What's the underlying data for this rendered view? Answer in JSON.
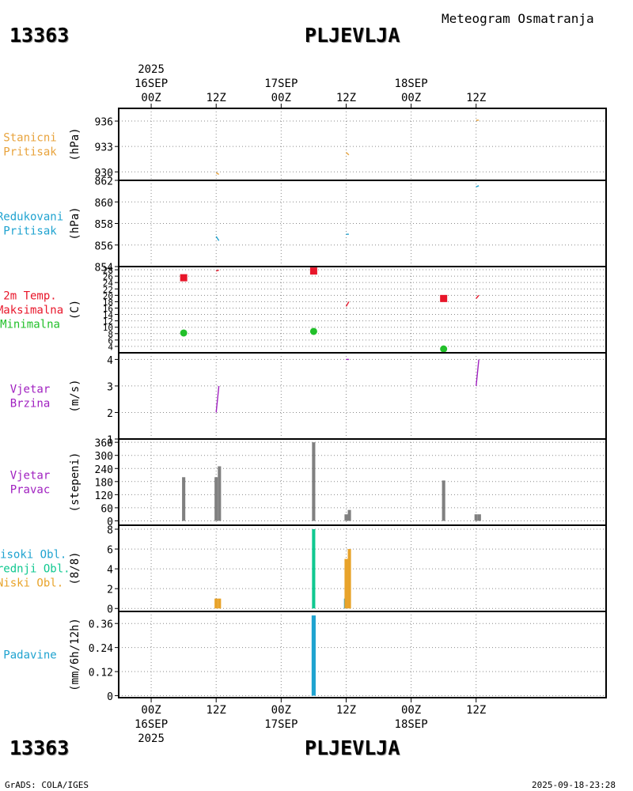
{
  "header": {
    "station_id": "13363",
    "station_name": "PLJEVLJA",
    "title": "Meteogram Osmatranja"
  },
  "footer": {
    "station_id": "13363",
    "station_name": "PLJEVLJA",
    "credit": "GrADS: COLA/IGES",
    "generated": "2025-09-18-23:28"
  },
  "colors": {
    "pressure": "#e8a33c",
    "reduced": "#1fa3d0",
    "tmax": "#e8162a",
    "tmin": "#22c02a",
    "wind": "#a020c0",
    "bar": "#808080",
    "high_cloud": "#1fa3d0",
    "mid_cloud": "#10c890",
    "low_cloud": "#e8a32a",
    "precip": "#1fa3d0"
  },
  "chart_data": {
    "type": "meteogram",
    "time_axis": {
      "hours_range": [
        -6,
        84
      ],
      "top_year_label": "2025",
      "bottom_year_label": "2025",
      "ticks": [
        {
          "hour": 0,
          "time": "00Z",
          "date": "16SEP"
        },
        {
          "hour": 12,
          "time": "12Z",
          "date": ""
        },
        {
          "hour": 24,
          "time": "00Z",
          "date": "17SEP"
        },
        {
          "hour": 36,
          "time": "12Z",
          "date": ""
        },
        {
          "hour": 48,
          "time": "00Z",
          "date": "18SEP"
        },
        {
          "hour": 60,
          "time": "12Z",
          "date": ""
        }
      ]
    },
    "panels": [
      {
        "id": "station_pressure",
        "labels": [
          {
            "text": "Stanicni",
            "color": "#e8a33c"
          },
          {
            "text": "Pritisak",
            "color": "#e8a33c"
          }
        ],
        "unit": "(hPa)",
        "ylim": [
          929,
          937.5
        ],
        "ticks": [
          930,
          933,
          936
        ],
        "series": [
          {
            "name": "Stanicni pritisak",
            "color": "#e8a33c",
            "segments": [
              {
                "x": [
                  12,
                  12.5
                ],
                "y": [
                  929.9,
                  929.7
                ]
              },
              {
                "x": [
                  36,
                  36.5
                ],
                "y": [
                  932.3,
                  932.0
                ]
              },
              {
                "x": [
                  60,
                  60.5
                ],
                "y": [
                  936.1,
                  936.1
                ]
              }
            ]
          }
        ]
      },
      {
        "id": "reduced_pressure",
        "labels": [
          {
            "text": "Redukovani",
            "color": "#1fa3d0"
          },
          {
            "text": "Pritisak",
            "color": "#1fa3d0"
          }
        ],
        "unit": "(hPa)",
        "ylim": [
          854,
          862
        ],
        "ticks": [
          854,
          856,
          858,
          860,
          862
        ],
        "series": [
          {
            "name": "Redukovani pritisak",
            "color": "#1fa3d0",
            "segments": [
              {
                "x": [
                  12,
                  12.5
                ],
                "y": [
                  856.8,
                  856.4
                ]
              },
              {
                "x": [
                  36,
                  36.5
                ],
                "y": [
                  857.0,
                  857.0
                ]
              },
              {
                "x": [
                  60,
                  60.5
                ],
                "y": [
                  861.4,
                  861.5
                ]
              }
            ]
          }
        ]
      },
      {
        "id": "temperature",
        "labels": [
          {
            "text": "2m Temp.",
            "color": "#e8162a"
          },
          {
            "text": "Maksimalna",
            "color": "#e8162a"
          },
          {
            "text": "Minimalna",
            "color": "#22c02a"
          }
        ],
        "unit": "(C)",
        "ylim": [
          2,
          29
        ],
        "ticks": [
          4,
          6,
          8,
          10,
          12,
          14,
          16,
          18,
          20,
          22,
          24,
          26,
          28
        ],
        "series": [
          {
            "name": "2m temperatura",
            "color": "#e8162a",
            "segments": [
              {
                "x": [
                  12,
                  12.5
                ],
                "y": [
                  27.6,
                  27.9
                ]
              },
              {
                "x": [
                  36,
                  36.5
                ],
                "y": [
                  16.5,
                  18.0
                ]
              },
              {
                "x": [
                  60,
                  60.5
                ],
                "y": [
                  19.0,
                  20.0
                ]
              }
            ]
          },
          {
            "name": "Maksimalna",
            "color": "#e8162a",
            "marker": "square",
            "x": [
              6,
              30,
              54
            ],
            "y": [
              25.5,
              27.6,
              19.0
            ]
          },
          {
            "name": "Minimalna",
            "color": "#22c02a",
            "marker": "circle",
            "x": [
              6,
              30,
              54
            ],
            "y": [
              8.2,
              8.7,
              3.2
            ]
          }
        ]
      },
      {
        "id": "wind_speed",
        "labels": [
          {
            "text": "Vjetar",
            "color": "#a020c0"
          },
          {
            "text": "Brzina",
            "color": "#a020c0"
          }
        ],
        "unit": "(m/s)",
        "ylim": [
          1,
          4.25
        ],
        "ticks": [
          1,
          2,
          3,
          4
        ],
        "series": [
          {
            "name": "Brzina vjetra",
            "color": "#a020c0",
            "segments": [
              {
                "x": [
                  12,
                  12.5
                ],
                "y": [
                  2.0,
                  3.0
                ]
              },
              {
                "x": [
                  36,
                  36.5
                ],
                "y": [
                  4.0,
                  4.0
                ]
              },
              {
                "x": [
                  60,
                  60.5
                ],
                "y": [
                  3.0,
                  4.0
                ]
              }
            ]
          }
        ]
      },
      {
        "id": "wind_direction",
        "labels": [
          {
            "text": "Vjetar",
            "color": "#a020c0"
          },
          {
            "text": "Pravac",
            "color": "#a020c0"
          }
        ],
        "unit": "(stepeni)",
        "ylim": [
          -20,
          375
        ],
        "ticks": [
          0,
          60,
          120,
          180,
          240,
          300,
          360
        ],
        "bars": [
          {
            "x": 6,
            "value": 200,
            "color": "#808080"
          },
          {
            "x": 12,
            "value": 200,
            "color": "#808080"
          },
          {
            "x": 12.6,
            "value": 250,
            "color": "#808080"
          },
          {
            "x": 30,
            "value": 360,
            "color": "#808080"
          },
          {
            "x": 36,
            "value": 30,
            "color": "#808080"
          },
          {
            "x": 36.6,
            "value": 50,
            "color": "#808080"
          },
          {
            "x": 54,
            "value": 185,
            "color": "#808080"
          },
          {
            "x": 60,
            "value": 30,
            "color": "#808080"
          },
          {
            "x": 60.6,
            "value": 30,
            "color": "#808080"
          }
        ]
      },
      {
        "id": "cloud_cover",
        "labels": [
          {
            "text": "Visoki Obl.",
            "color": "#1fa3d0"
          },
          {
            "text": "Srednji Obl.",
            "color": "#10c890"
          },
          {
            "text": "Niski Obl.",
            "color": "#e8a32a"
          }
        ],
        "unit": "(8/8)",
        "ylim": [
          -0.3,
          8.4
        ],
        "ticks": [
          0,
          2,
          4,
          6,
          8
        ],
        "bars": [
          {
            "x": 12,
            "value": 1,
            "color": "#e8a32a"
          },
          {
            "x": 12.6,
            "value": 1,
            "color": "#e8a32a"
          },
          {
            "x": 30,
            "value": 8,
            "color": "#10c890"
          },
          {
            "x": 35.9,
            "value": 1,
            "color": "#1fa3d0"
          },
          {
            "x": 36,
            "value": 5,
            "color": "#e8a32a"
          },
          {
            "x": 36.6,
            "value": 6,
            "color": "#e8a32a"
          }
        ]
      },
      {
        "id": "precipitation",
        "labels": [
          {
            "text": "Padavine",
            "color": "#1fa3d0"
          }
        ],
        "unit": "(mm/6h/12h)",
        "ylim": [
          -0.01,
          0.42
        ],
        "ticks": [
          0,
          0.12,
          0.24,
          0.36
        ],
        "bars": [
          {
            "x": 30,
            "value": 0.4,
            "color": "#1fa3d0",
            "width": 0.75
          }
        ]
      }
    ]
  }
}
